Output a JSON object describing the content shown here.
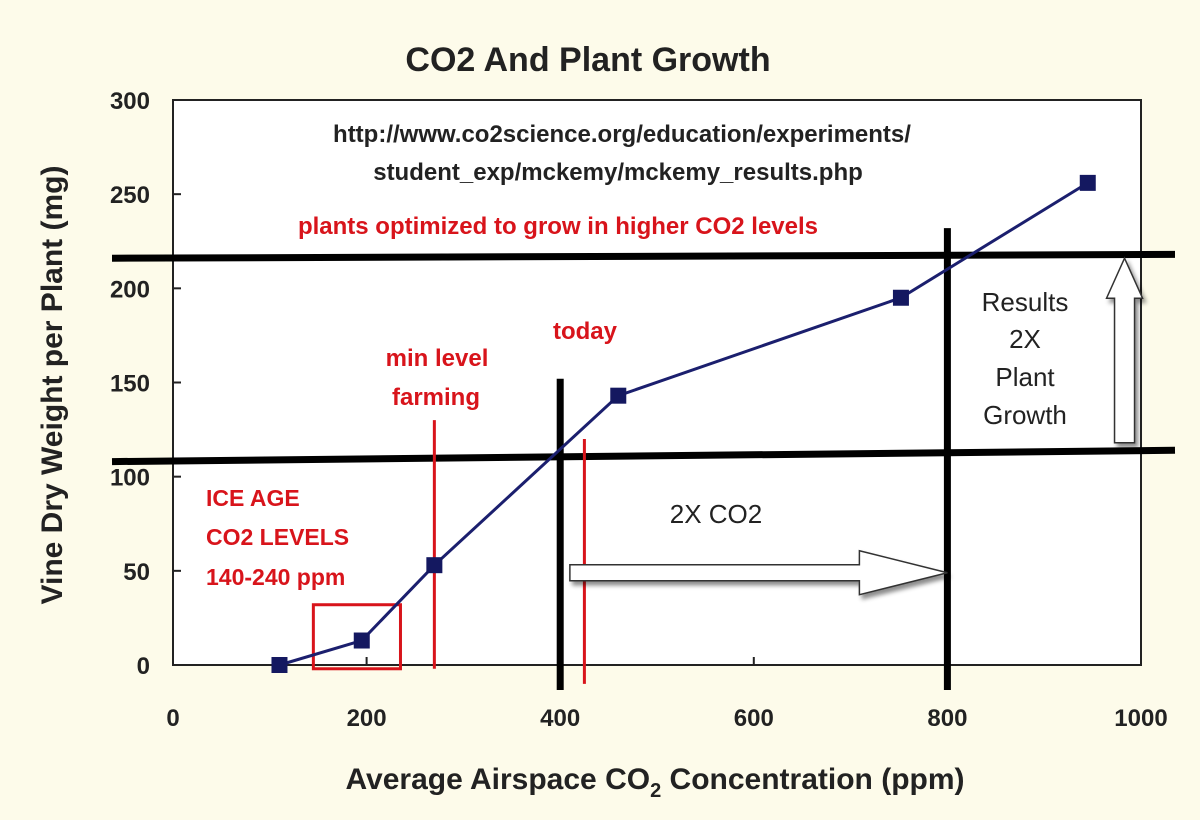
{
  "colors": {
    "background": "#fdfbea",
    "plot_background": "#ffffff",
    "series_line": "#1b1f6e",
    "marker": "#141860",
    "annotation_red": "#d8141b",
    "reference_line": "#000000",
    "arrow_fill": "#ffffff",
    "arrow_stroke": "#333333"
  },
  "chart_data": {
    "type": "line",
    "title": "CO2  And Plant Growth",
    "xlabel": {
      "main": "Average  Airspace  CO",
      "subscript": "2",
      "tail": " Concentration  (ppm)"
    },
    "ylabel": "Vine  Dry  Weight  per  Plant  (mg)",
    "xlim": [
      0,
      1000
    ],
    "ylim": [
      0,
      300
    ],
    "xticks": [
      0,
      200,
      400,
      600,
      800,
      1000
    ],
    "yticks": [
      0,
      50,
      100,
      150,
      200,
      250,
      300
    ],
    "xtick_labels": [
      "0",
      "200",
      "400",
      "600",
      "800",
      "1000"
    ],
    "ytick_labels": [
      "0",
      "50",
      "100",
      "150",
      "200",
      "250",
      "300"
    ],
    "grid": false,
    "legend": "none",
    "series": [
      {
        "x": [
          110,
          195,
          270,
          460,
          752,
          945
        ],
        "y": [
          0,
          13,
          53,
          143,
          195,
          256
        ]
      }
    ],
    "reference_lines": {
      "horizontal": [
        {
          "y_start": 108,
          "y_end": 114
        },
        {
          "y_start": 216,
          "y_end": 218
        }
      ],
      "vertical": [
        {
          "x": 400,
          "y_top": 152
        },
        {
          "x": 800,
          "y_top": 232
        }
      ]
    },
    "red_markers": {
      "box": {
        "x_min": 145,
        "x_max": 235,
        "y_min": -2,
        "y_max": 32
      },
      "min_farming_line": {
        "x": 270,
        "y_top": 130,
        "y_bottom": -2
      },
      "today_line": {
        "x": 425,
        "y_top": 120,
        "y_bottom": -10
      }
    },
    "arrows": {
      "horizontal": {
        "x_start": 410,
        "x_end": 800,
        "y": 49
      },
      "vertical": {
        "x": 983,
        "y_start": 118,
        "y_end": 216
      }
    },
    "annotations": {
      "url_line1": "http://www.co2science.org/education/experiments/",
      "url_line2": "student_exp/mckemy/mckemy_results.php",
      "optimized": "plants optimized to grow in higher CO2 levels",
      "results": [
        "Results",
        "2X",
        "Plant",
        "Growth"
      ],
      "today": "today",
      "min_level": [
        "min level",
        "farming"
      ],
      "ice_age": [
        "ICE AGE",
        "CO2 LEVELS",
        "140-240 ppm"
      ],
      "double_co2": "2X CO2"
    }
  }
}
